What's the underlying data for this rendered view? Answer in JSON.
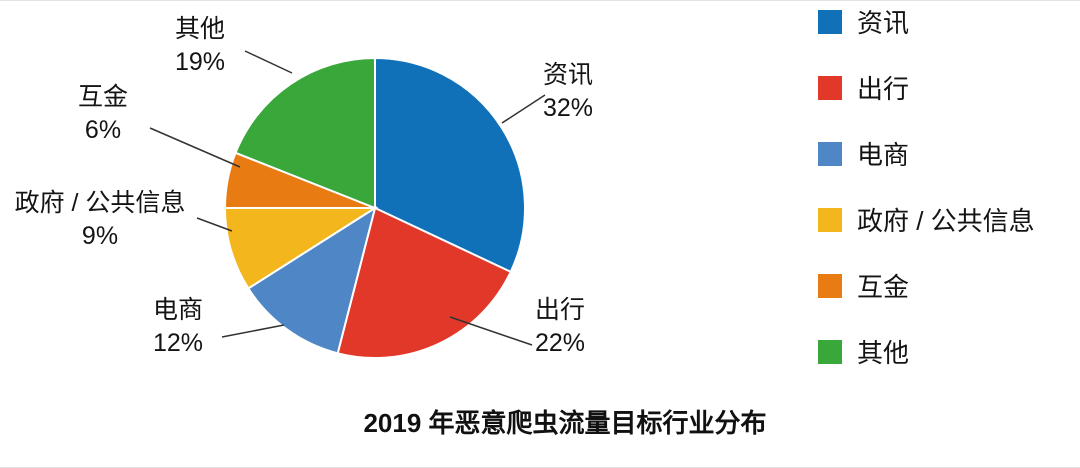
{
  "chart_data": {
    "type": "pie",
    "title": "2019 年恶意爬虫流量目标行业分布",
    "categories": [
      "资讯",
      "出行",
      "电商",
      "政府 / 公共信息",
      "互金",
      "其他"
    ],
    "values": [
      32,
      22,
      12,
      9,
      6,
      19
    ],
    "unit": "%",
    "colors": [
      "#1171b8",
      "#e2382a",
      "#4e86c6",
      "#f3b71d",
      "#e87b12",
      "#3aa73a"
    ],
    "start_angle": "top",
    "direction": "clockwise",
    "legend_position": "right",
    "slice_label_format": "name + percent",
    "leader_line_color": "#333333",
    "background_color": "#ffffff"
  }
}
